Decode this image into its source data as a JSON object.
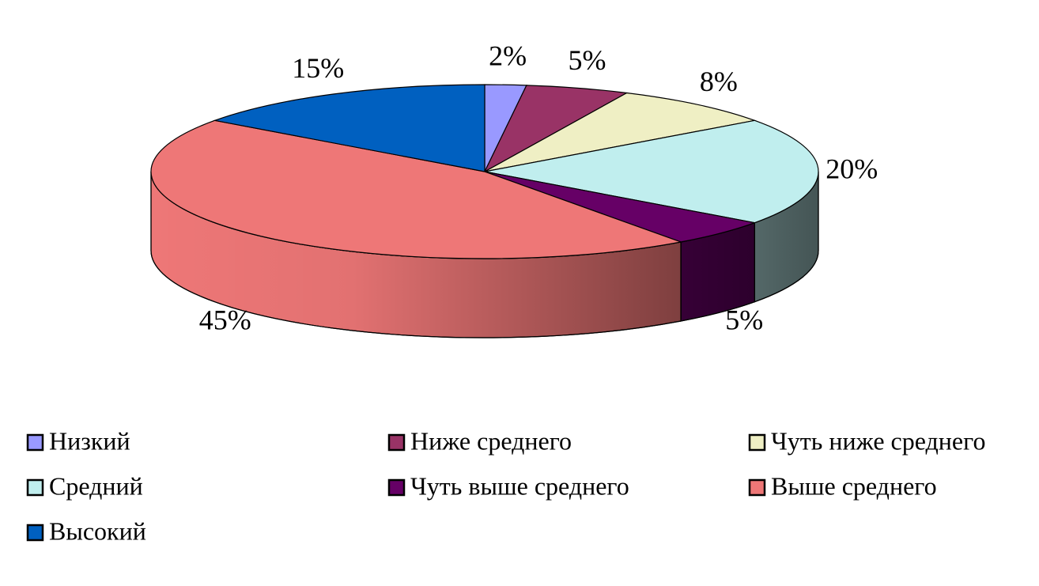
{
  "chart_data": {
    "type": "pie",
    "categories": [
      "Низкий",
      "Ниже среднего",
      "Чуть ниже среднего",
      "Средний",
      "Чуть выше среднего",
      "Выше среднего",
      "Высокий"
    ],
    "values": [
      2,
      5,
      8,
      20,
      5,
      45,
      15
    ],
    "value_labels": [
      "2%",
      "5%",
      "8%",
      "20%",
      "5%",
      "45%",
      "15%"
    ],
    "colors": [
      "#9999ff",
      "#993366",
      "#efefc4",
      "#c0eeee",
      "#660066",
      "#ee7777",
      "#0060c0"
    ],
    "legend": "bottom"
  }
}
